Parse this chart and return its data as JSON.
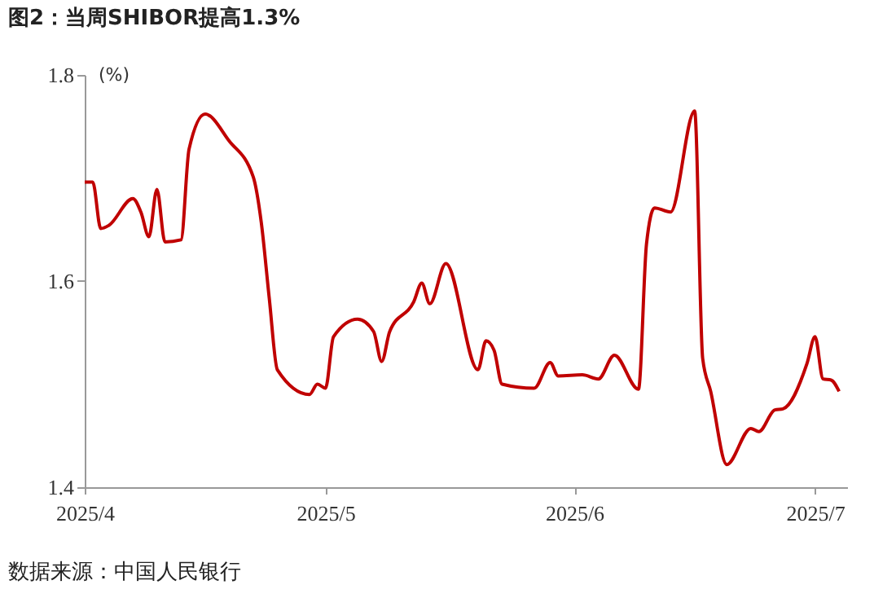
{
  "chart_data": {
    "type": "line",
    "title": "图2：当周SHIBOR提高1.3%",
    "ylabel": "(%)",
    "annotations": [
      "数据来源：中国人民银行"
    ],
    "x": [
      "2025-04-01",
      "2025-04-02",
      "2025-04-03",
      "2025-04-04",
      "2025-04-07",
      "2025-04-08",
      "2025-04-09",
      "2025-04-10",
      "2025-04-11",
      "2025-04-13",
      "2025-04-14",
      "2025-04-16",
      "2025-04-19",
      "2025-04-22",
      "2025-04-23",
      "2025-04-24",
      "2025-04-25",
      "2025-04-29",
      "2025-04-30",
      "2025-05-01",
      "2025-05-02",
      "2025-05-05",
      "2025-05-07",
      "2025-05-08",
      "2025-05-09",
      "2025-05-12",
      "2025-05-13",
      "2025-05-14",
      "2025-05-16",
      "2025-05-20",
      "2025-05-21",
      "2025-05-22",
      "2025-05-23",
      "2025-05-27",
      "2025-05-29",
      "2025-05-30",
      "2025-06-02",
      "2025-06-04",
      "2025-06-06",
      "2025-06-09",
      "2025-06-10",
      "2025-06-11",
      "2025-06-13",
      "2025-06-16",
      "2025-06-17",
      "2025-06-18",
      "2025-06-20",
      "2025-06-23",
      "2025-06-24",
      "2025-06-26",
      "2025-06-27",
      "2025-06-30",
      "2025-07-01",
      "2025-07-02",
      "2025-07-03",
      "2025-07-04"
    ],
    "series": [
      {
        "color": "#c00000",
        "values": [
          1.696,
          1.696,
          1.651,
          1.654,
          1.68,
          1.667,
          1.643,
          1.689,
          1.638,
          1.64,
          1.728,
          1.762,
          1.736,
          1.701,
          1.657,
          1.583,
          1.514,
          1.49,
          1.5,
          1.496,
          1.546,
          1.563,
          1.551,
          1.522,
          1.551,
          1.58,
          1.598,
          1.578,
          1.617,
          1.514,
          1.542,
          1.533,
          1.5,
          1.496,
          1.521,
          1.508,
          1.509,
          1.505,
          1.528,
          1.495,
          1.636,
          1.671,
          1.667,
          1.765,
          1.525,
          1.493,
          1.422,
          1.457,
          1.454,
          1.475,
          1.476,
          1.52,
          1.546,
          1.505,
          1.504,
          1.493
        ]
      }
    ],
    "xlim": [
      "2025-04-01",
      "2025-07-05"
    ],
    "xticks": [
      {
        "value": "2025-04-01",
        "label": "2025/4"
      },
      {
        "value": "2025-05-01",
        "label": "2025/5"
      },
      {
        "value": "2025-06-01",
        "label": "2025/6"
      },
      {
        "value": "2025-07-01",
        "label": "2025/7"
      }
    ],
    "ylim": [
      1.4,
      1.8
    ],
    "yticks": [
      1.4,
      1.6,
      1.8
    ],
    "grid": false,
    "marker": "none",
    "line_style": "solid"
  }
}
